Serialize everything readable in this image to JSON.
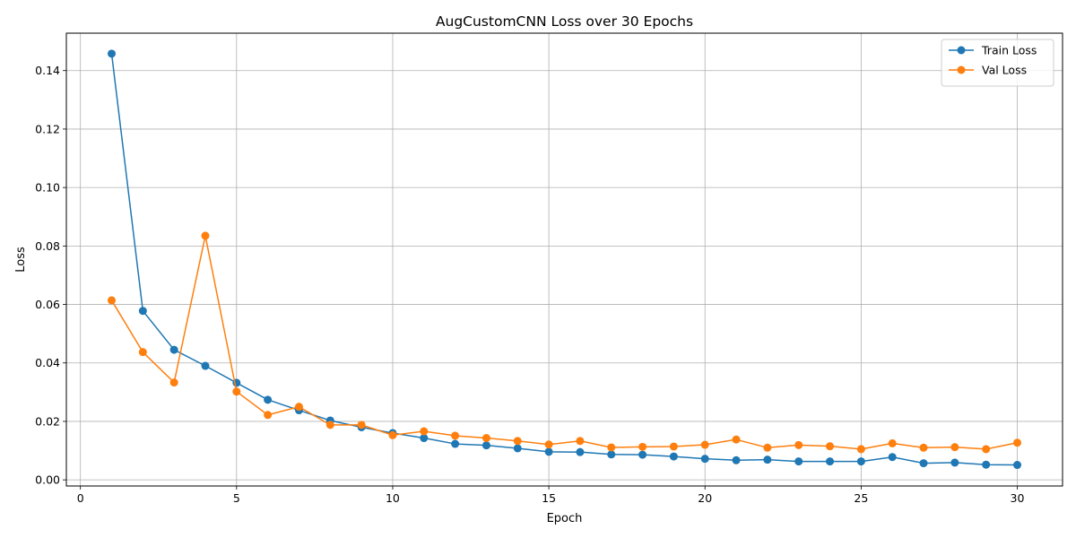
{
  "chart_data": {
    "type": "line",
    "title": "AugCustomCNN Loss over 30 Epochs",
    "xlabel": "Epoch",
    "ylabel": "Loss",
    "xlim": [
      -0.45,
      31.45
    ],
    "ylim": [
      -0.0021,
      0.1528
    ],
    "xticks": [
      0,
      5,
      10,
      15,
      20,
      25,
      30
    ],
    "xtick_labels": [
      "0",
      "5",
      "10",
      "15",
      "20",
      "25",
      "30"
    ],
    "yticks": [
      0.0,
      0.02,
      0.04,
      0.06,
      0.08,
      0.1,
      0.12,
      0.14
    ],
    "ytick_labels": [
      "0.00",
      "0.02",
      "0.04",
      "0.06",
      "0.08",
      "0.10",
      "0.12",
      "0.14"
    ],
    "grid": true,
    "legend_position": "top-right",
    "x": [
      1,
      2,
      3,
      4,
      5,
      6,
      7,
      8,
      9,
      10,
      11,
      12,
      13,
      14,
      15,
      16,
      17,
      18,
      19,
      20,
      21,
      22,
      23,
      24,
      25,
      26,
      27,
      28,
      29,
      30
    ],
    "series": [
      {
        "name": "Train Loss",
        "color": "#1f77b4",
        "values": [
          0.1458,
          0.0578,
          0.0445,
          0.039,
          0.0332,
          0.0274,
          0.0238,
          0.0203,
          0.018,
          0.016,
          0.0143,
          0.0123,
          0.0118,
          0.0108,
          0.0096,
          0.0095,
          0.0087,
          0.0086,
          0.008,
          0.0072,
          0.0067,
          0.0069,
          0.0063,
          0.0063,
          0.0063,
          0.0078,
          0.0057,
          0.0059,
          0.0052,
          0.0051
        ]
      },
      {
        "name": "Val Loss",
        "color": "#ff7f0e",
        "values": [
          0.0614,
          0.0437,
          0.0333,
          0.0835,
          0.0302,
          0.0222,
          0.025,
          0.0188,
          0.0188,
          0.0153,
          0.0166,
          0.0151,
          0.0143,
          0.0133,
          0.0121,
          0.0133,
          0.0111,
          0.0113,
          0.0114,
          0.012,
          0.0138,
          0.011,
          0.0119,
          0.0115,
          0.0105,
          0.0125,
          0.011,
          0.0112,
          0.0105,
          0.0127
        ]
      }
    ]
  }
}
